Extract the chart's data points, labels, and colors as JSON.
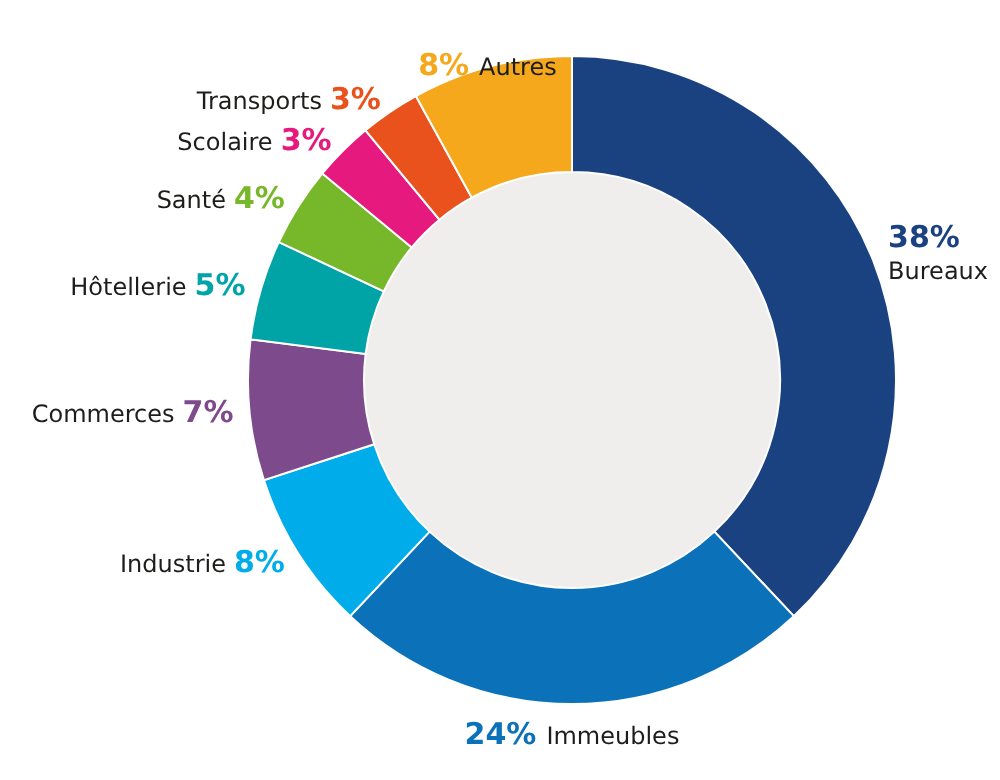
{
  "chart_data": {
    "type": "donut",
    "categories": [
      "Bureaux",
      "Immeubles",
      "Industrie",
      "Commerces",
      "Hôtellerie",
      "Santé",
      "Scolaire",
      "Transports",
      "Autres"
    ],
    "values": [
      38,
      24,
      8,
      7,
      5,
      4,
      3,
      3,
      8
    ],
    "colors": [
      "#1b4280",
      "#0b72b9",
      "#00adea",
      "#7d4a8b",
      "#00a4a6",
      "#77b82a",
      "#e5197e",
      "#e9511d",
      "#f5a81c"
    ],
    "value_labels": [
      "38%",
      "24%",
      "8%",
      "7%",
      "5%",
      "4%",
      "3%",
      "3%",
      "8%"
    ]
  }
}
